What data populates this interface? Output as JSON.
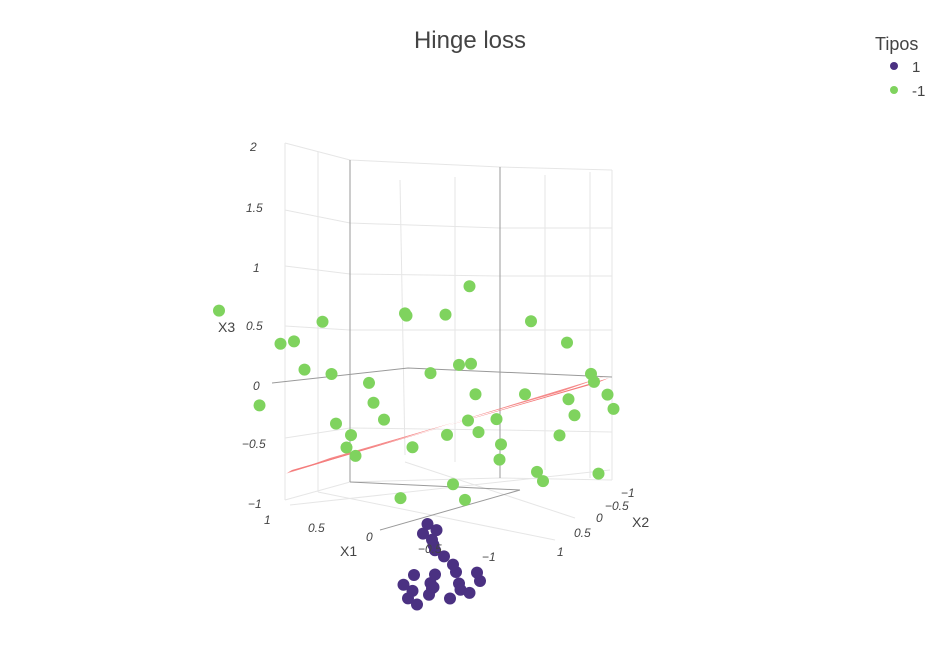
{
  "chart_data": {
    "type": "scatter3d",
    "title": "Hinge loss",
    "legend": {
      "title": "Tipos",
      "placement": "top-right",
      "entries": [
        {
          "name": "1",
          "color": "#4b3182"
        },
        {
          "name": "-1",
          "color": "#7fd35e"
        }
      ]
    },
    "axes": {
      "x1": {
        "label": "X1",
        "range": [
          -1,
          1
        ],
        "ticks": [
          "1",
          "0.5",
          "0",
          "−0.5",
          "−1"
        ]
      },
      "x2": {
        "label": "X2",
        "range": [
          -1,
          1
        ],
        "ticks": [
          "−1",
          "−0.5",
          "0",
          "0.5",
          "1"
        ]
      },
      "x3": {
        "label": "X3",
        "range": [
          -1,
          2
        ],
        "ticks": [
          "−1",
          "−0.5",
          "0",
          "0.5",
          "1",
          "1.5",
          "2"
        ]
      }
    },
    "plane": {
      "name": "separating plane",
      "color": "#f47c7c"
    },
    "series": [
      {
        "name": "-1",
        "color": "#7fd35e",
        "points": [
          [
            0.15,
            0.25,
            2.0
          ],
          [
            0.8,
            -0.9,
            1.85
          ],
          [
            -0.5,
            -0.7,
            1.3
          ],
          [
            -0.65,
            -0.55,
            1.25
          ],
          [
            -0.8,
            -0.1,
            1.2
          ],
          [
            -0.05,
            0.1,
            1.15
          ],
          [
            -0.6,
            0.3,
            1.15
          ],
          [
            0.1,
            -0.05,
            1.1
          ],
          [
            0.3,
            -0.3,
            1.05
          ],
          [
            -0.3,
            0.7,
            1.05
          ],
          [
            0.0,
            0.5,
            0.95
          ],
          [
            0.3,
            0.55,
            0.85
          ],
          [
            0.7,
            -0.2,
            0.85
          ],
          [
            -0.1,
            0.75,
            0.75
          ],
          [
            -0.7,
            0.4,
            0.75
          ],
          [
            0.45,
            0.7,
            0.7
          ],
          [
            0.2,
            0.35,
            0.65
          ],
          [
            0.5,
            0.15,
            0.6
          ],
          [
            -0.15,
            0.0,
            0.55
          ],
          [
            0.4,
            0.9,
            0.45
          ],
          [
            0.6,
            0.5,
            0.35
          ],
          [
            -0.35,
            0.45,
            0.4
          ],
          [
            0.75,
            0.7,
            0.3
          ],
          [
            -0.05,
            0.95,
            0.25
          ],
          [
            0.25,
            -0.65,
            1.55
          ],
          [
            0.55,
            -0.6,
            1.5
          ],
          [
            0.35,
            -0.85,
            1.35
          ],
          [
            -0.2,
            -0.45,
            1.45
          ],
          [
            -0.25,
            0.85,
            0.9
          ],
          [
            -0.45,
            -0.3,
            0.9
          ],
          [
            0.65,
            -0.45,
            1.3
          ],
          [
            0.05,
            -0.75,
            0.95
          ],
          [
            0.55,
            -0.25,
            0.55
          ],
          [
            0.9,
            -0.55,
            1.05
          ],
          [
            0.8,
            0.2,
            1.0
          ],
          [
            0.95,
            0.1,
            0.9
          ],
          [
            -0.55,
            0.65,
            0.6
          ],
          [
            0.85,
            0.35,
            0.3
          ],
          [
            0.1,
            0.7,
            0.2
          ],
          [
            -0.8,
            0.15,
            0.5
          ],
          [
            0.85,
            0.05,
            0.65
          ],
          [
            0.45,
            -0.15,
            0.95
          ],
          [
            0.1,
            0.25,
            0.95
          ],
          [
            0.4,
            0.3,
            0.7
          ],
          [
            -0.35,
            0.05,
            0.1
          ]
        ]
      },
      {
        "name": "1",
        "color": "#4b3182",
        "points": [
          [
            0.1,
            -0.05,
            -0.9
          ],
          [
            0.15,
            0.0,
            -0.92
          ],
          [
            0.2,
            0.05,
            -0.88
          ],
          [
            0.05,
            0.1,
            -0.9
          ],
          [
            0.0,
            -0.1,
            -0.87
          ],
          [
            0.25,
            -0.05,
            -0.91
          ],
          [
            0.1,
            0.15,
            -0.93
          ],
          [
            -0.05,
            0.0,
            -0.85
          ],
          [
            0.3,
            0.1,
            -0.9
          ],
          [
            0.2,
            -0.15,
            -0.89
          ],
          [
            0.0,
            0.2,
            -0.88
          ],
          [
            -0.1,
            0.1,
            -0.86
          ],
          [
            0.15,
            0.25,
            -0.92
          ],
          [
            0.35,
            0.0,
            -0.93
          ],
          [
            -0.15,
            -0.1,
            -0.84
          ],
          [
            -0.2,
            -0.2,
            -0.8
          ],
          [
            -0.25,
            -0.3,
            -0.78
          ],
          [
            -0.3,
            -0.35,
            -0.76
          ],
          [
            -0.35,
            -0.4,
            -0.74
          ],
          [
            -0.4,
            -0.5,
            -0.72
          ],
          [
            -0.45,
            -0.45,
            -0.7
          ],
          [
            -0.5,
            -0.55,
            -0.68
          ],
          [
            0.05,
            -0.2,
            -0.87
          ],
          [
            0.25,
            0.2,
            -0.94
          ],
          [
            0.4,
            0.1,
            -0.95
          ]
        ]
      }
    ]
  }
}
